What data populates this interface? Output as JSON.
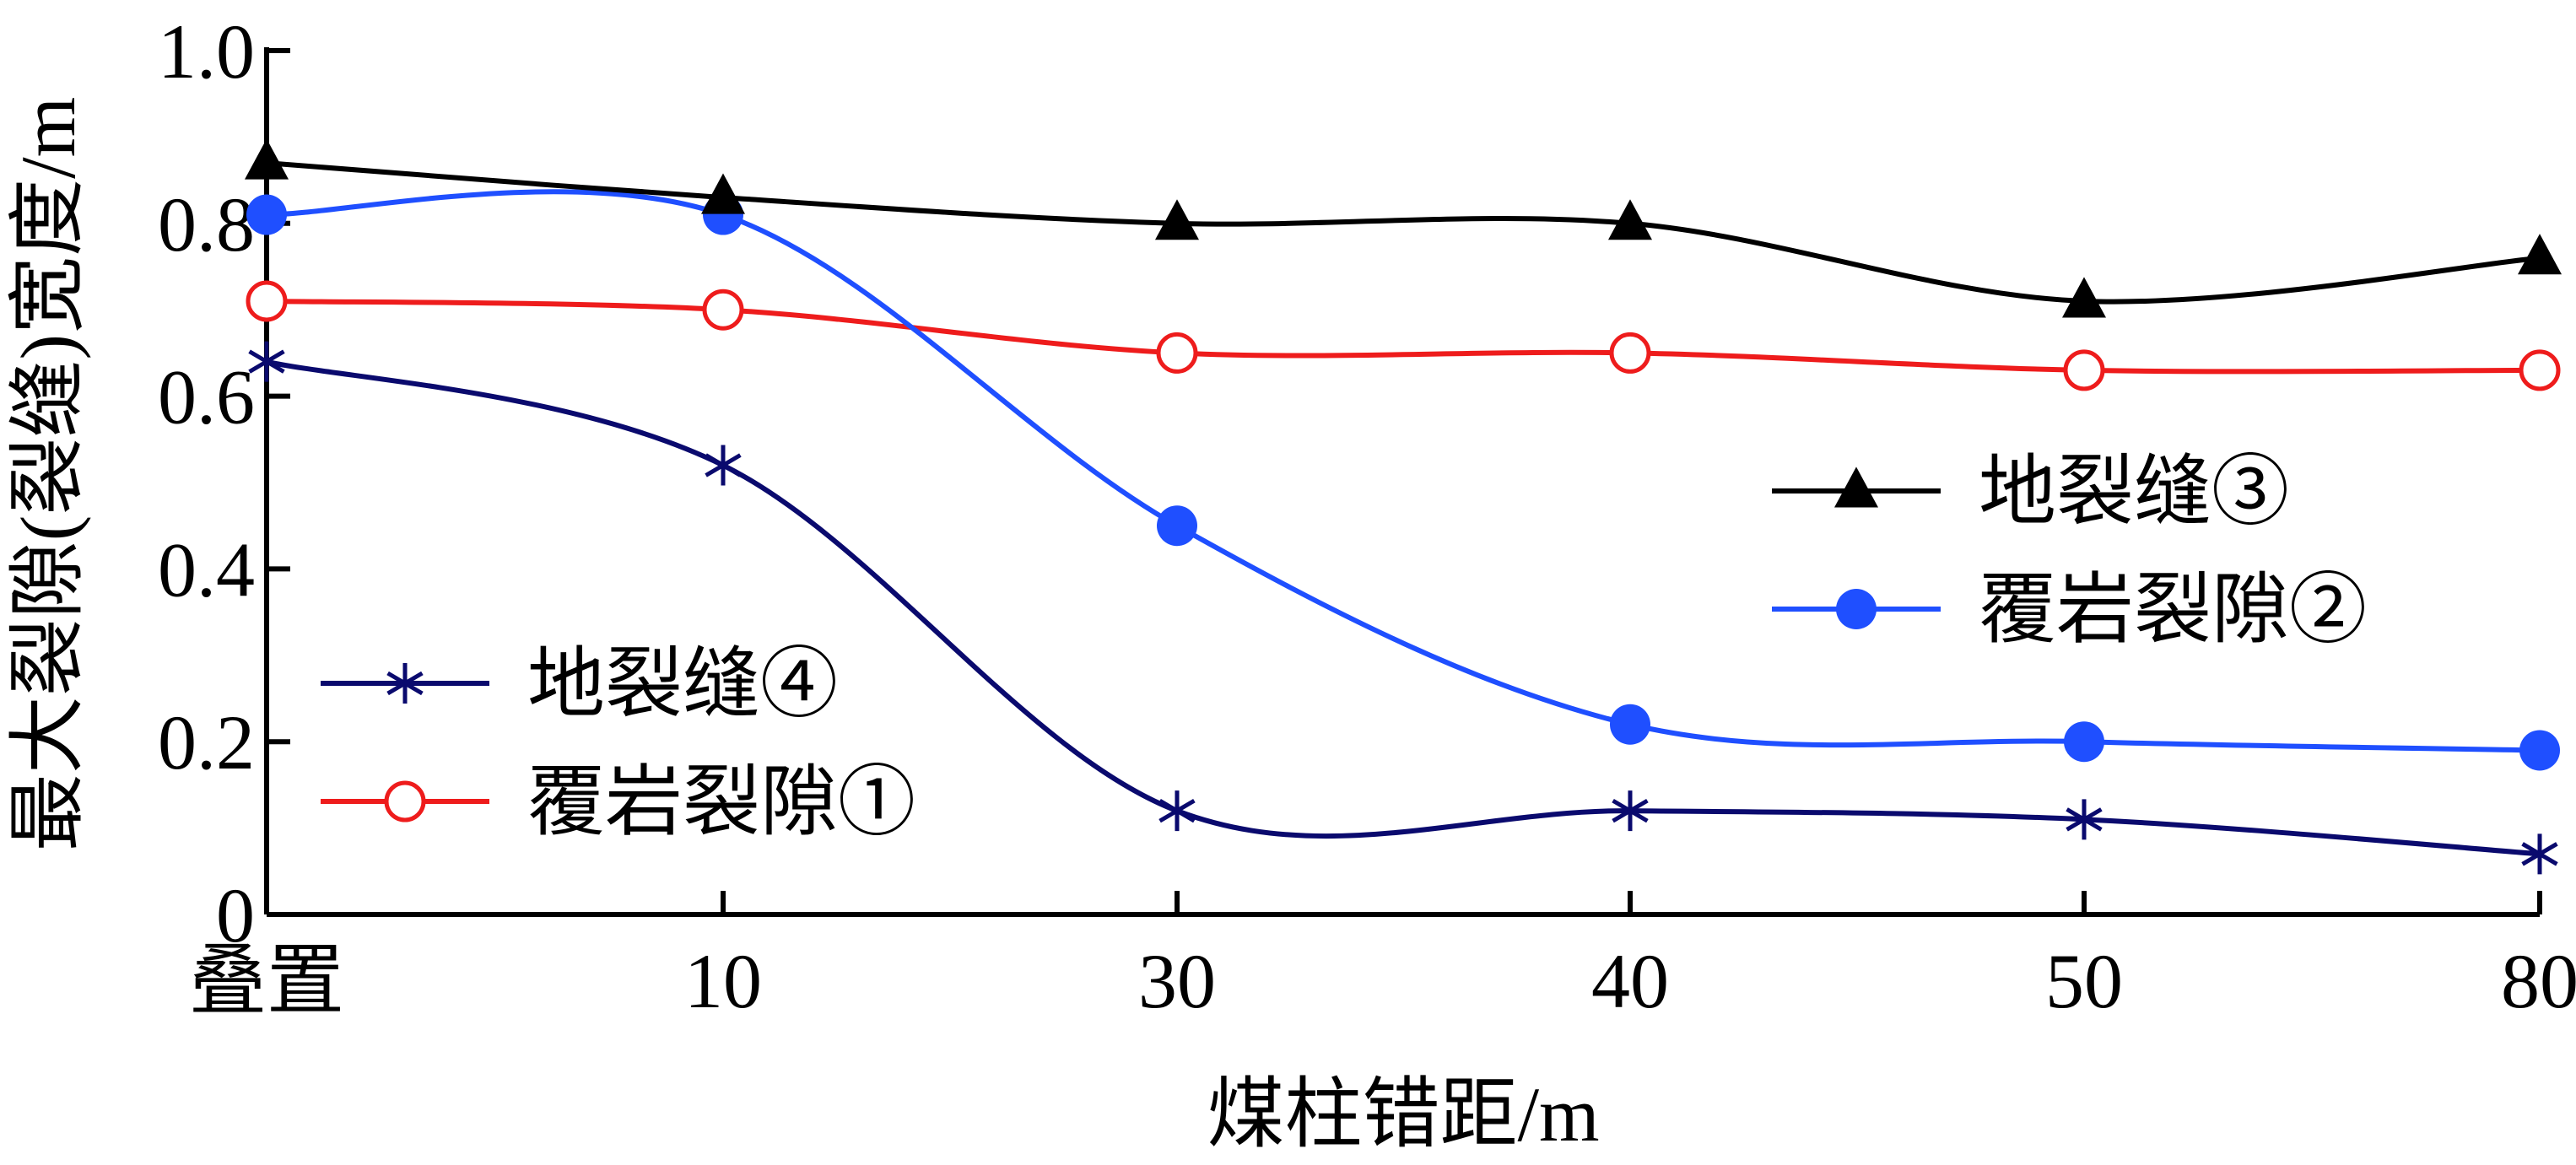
{
  "chart_data": {
    "type": "line",
    "title": "",
    "xlabel": "煤柱错距/m",
    "ylabel": "最大裂隙(裂缝)宽度/m",
    "categories": [
      "叠置",
      "10",
      "30",
      "40",
      "50",
      "80"
    ],
    "yticks": [
      "0",
      "0.2",
      "0.4",
      "0.6",
      "0.8",
      "1.0"
    ],
    "ylim": [
      0,
      1.0
    ],
    "grid": false,
    "series": [
      {
        "name": "地裂缝③",
        "color": "#000000",
        "marker": "triangle",
        "values": [
          0.87,
          0.83,
          0.8,
          0.8,
          0.71,
          0.76
        ]
      },
      {
        "name": "覆岩裂隙②",
        "color": "#1f4fff",
        "marker": "filled-circle",
        "values": [
          0.81,
          0.81,
          0.45,
          0.22,
          0.2,
          0.19
        ]
      },
      {
        "name": "地裂缝④",
        "color": "#0a0a6e",
        "marker": "star",
        "values": [
          0.64,
          0.52,
          0.12,
          0.12,
          0.11,
          0.07
        ]
      },
      {
        "name": "覆岩裂隙①",
        "color": "#ee1c1c",
        "marker": "open-circle",
        "values": [
          0.71,
          0.7,
          0.65,
          0.65,
          0.63,
          0.63
        ]
      }
    ],
    "legends": [
      {
        "position": "right-middle",
        "entries": [
          "地裂缝③",
          "覆岩裂隙②"
        ]
      },
      {
        "position": "left-bottom",
        "entries": [
          "地裂缝④",
          "覆岩裂隙①"
        ]
      }
    ]
  }
}
